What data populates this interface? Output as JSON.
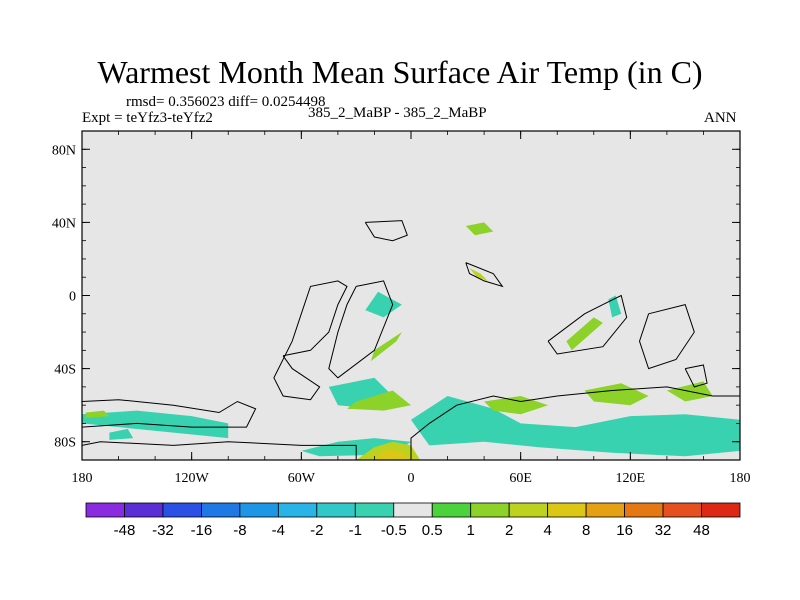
{
  "title": "Warmest Month Mean Surface Air Temp (in C)",
  "stats": "rmsd= 0.356023 diff= 0.0254498",
  "expt": "Expt = teYfz3-teYfz2",
  "case": "385_2_MaBP - 385_2_MaBP",
  "period": "ANN",
  "colors": {
    "land": "#e6e6e6",
    "outline": "#000000"
  },
  "axes": {
    "lat_labels": [
      {
        "text": "80N",
        "lat": 80
      },
      {
        "text": "40N",
        "lat": 40
      },
      {
        "text": "0",
        "lat": 0
      },
      {
        "text": "40S",
        "lat": -40
      },
      {
        "text": "80S",
        "lat": -80
      }
    ],
    "lon_labels": [
      {
        "text": "180",
        "lon": -180
      },
      {
        "text": "120W",
        "lon": -120
      },
      {
        "text": "60W",
        "lon": -60
      },
      {
        "text": "0",
        "lon": 0
      },
      {
        "text": "60E",
        "lon": 60
      },
      {
        "text": "120E",
        "lon": 120
      },
      {
        "text": "180",
        "lon": 180
      }
    ]
  },
  "colorbar": {
    "colors": [
      "#8a2be2",
      "#5b2fd6",
      "#2a50e6",
      "#1e78e6",
      "#1e96e6",
      "#28b4e6",
      "#30c8c8",
      "#38d2b0",
      "#e6e6e6",
      "#4cd23c",
      "#8cd228",
      "#bcd21e",
      "#dcc814",
      "#e6a014",
      "#e67814",
      "#e6501e",
      "#dc2814"
    ],
    "labels": [
      "-48",
      "-32",
      "-16",
      "-8",
      "-4",
      "-2",
      "-1",
      "-0.5",
      "0.5",
      "1",
      "2",
      "4",
      "8",
      "16",
      "32",
      "48"
    ]
  },
  "anomalies": [
    {
      "color": "#38d2b0",
      "pts": [
        [
          -180,
          -65
        ],
        [
          -150,
          -63
        ],
        [
          -120,
          -66
        ],
        [
          -100,
          -70
        ],
        [
          -100,
          -78
        ],
        [
          -130,
          -75
        ],
        [
          -160,
          -72
        ],
        [
          -180,
          -70
        ]
      ]
    },
    {
      "color": "#8cd228",
      "pts": [
        [
          -178,
          -64
        ],
        [
          -168,
          -63
        ],
        [
          -165,
          -66
        ],
        [
          -178,
          -67
        ]
      ]
    },
    {
      "color": "#38d2b0",
      "pts": [
        [
          -45,
          -50
        ],
        [
          -20,
          -45
        ],
        [
          -10,
          -55
        ],
        [
          -20,
          -62
        ],
        [
          -40,
          -60
        ]
      ]
    },
    {
      "color": "#8cd228",
      "pts": [
        [
          -30,
          -58
        ],
        [
          -10,
          -52
        ],
        [
          0,
          -60
        ],
        [
          -15,
          -63
        ],
        [
          -35,
          -62
        ]
      ]
    },
    {
      "color": "#38d2b0",
      "pts": [
        [
          -60,
          -85
        ],
        [
          -40,
          -80
        ],
        [
          -20,
          -78
        ],
        [
          0,
          -80
        ],
        [
          -10,
          -87
        ],
        [
          -50,
          -88
        ]
      ]
    },
    {
      "color": "#bcd21e",
      "pts": [
        [
          -30,
          -90
        ],
        [
          -20,
          -83
        ],
        [
          -10,
          -80
        ],
        [
          0,
          -82
        ],
        [
          5,
          -90
        ]
      ]
    },
    {
      "color": "#dcc814",
      "pts": [
        [
          -22,
          -90
        ],
        [
          -12,
          -84
        ],
        [
          -5,
          -86
        ],
        [
          0,
          -90
        ]
      ]
    },
    {
      "color": "#38d2b0",
      "pts": [
        [
          0,
          -68
        ],
        [
          20,
          -55
        ],
        [
          45,
          -62
        ],
        [
          60,
          -70
        ],
        [
          90,
          -72
        ],
        [
          120,
          -66
        ],
        [
          150,
          -65
        ],
        [
          180,
          -68
        ],
        [
          180,
          -85
        ],
        [
          150,
          -88
        ],
        [
          110,
          -86
        ],
        [
          70,
          -83
        ],
        [
          40,
          -80
        ],
        [
          10,
          -82
        ],
        [
          5,
          -75
        ]
      ]
    },
    {
      "color": "#8cd228",
      "pts": [
        [
          95,
          -52
        ],
        [
          115,
          -48
        ],
        [
          130,
          -55
        ],
        [
          120,
          -60
        ],
        [
          100,
          -58
        ]
      ]
    },
    {
      "color": "#8cd228",
      "pts": [
        [
          140,
          -52
        ],
        [
          160,
          -47
        ],
        [
          165,
          -55
        ],
        [
          150,
          -58
        ]
      ]
    },
    {
      "color": "#8cd228",
      "pts": [
        [
          40,
          -58
        ],
        [
          60,
          -55
        ],
        [
          75,
          -60
        ],
        [
          60,
          -65
        ],
        [
          45,
          -63
        ]
      ]
    },
    {
      "color": "#38d2b0",
      "pts": [
        [
          -18,
          2
        ],
        [
          -5,
          -5
        ],
        [
          -15,
          -12
        ],
        [
          -25,
          -8
        ]
      ]
    },
    {
      "color": "#8cd228",
      "pts": [
        [
          -20,
          -30
        ],
        [
          -5,
          -20
        ],
        [
          -8,
          -25
        ],
        [
          -22,
          -36
        ]
      ]
    },
    {
      "color": "#8cd228",
      "pts": [
        [
          85,
          -25
        ],
        [
          100,
          -12
        ],
        [
          105,
          -15
        ],
        [
          88,
          -30
        ]
      ]
    },
    {
      "color": "#38d2b0",
      "pts": [
        [
          108,
          -2
        ],
        [
          112,
          0
        ],
        [
          115,
          -10
        ],
        [
          110,
          -12
        ]
      ]
    },
    {
      "color": "#8cd228",
      "pts": [
        [
          30,
          38
        ],
        [
          40,
          40
        ],
        [
          45,
          35
        ],
        [
          35,
          33
        ]
      ]
    },
    {
      "color": "#bcd21e",
      "pts": [
        [
          32,
          15
        ],
        [
          38,
          12
        ],
        [
          42,
          8
        ],
        [
          36,
          10
        ]
      ]
    },
    {
      "color": "#38d2b0",
      "pts": [
        [
          -165,
          -75
        ],
        [
          -155,
          -73
        ],
        [
          -152,
          -78
        ],
        [
          -165,
          -79
        ]
      ]
    }
  ],
  "outlines": [
    [
      [
        -30,
        -90
      ],
      [
        -30,
        -82
      ],
      [
        -60,
        -82
      ],
      [
        -100,
        -80
      ],
      [
        -130,
        -82
      ],
      [
        -170,
        -80
      ],
      [
        -180,
        -82
      ]
    ],
    [
      [
        0,
        -90
      ],
      [
        0,
        -78
      ],
      [
        10,
        -70
      ],
      [
        25,
        -60
      ],
      [
        45,
        -55
      ],
      [
        60,
        -58
      ],
      [
        80,
        -55
      ],
      [
        110,
        -52
      ],
      [
        140,
        -50
      ],
      [
        165,
        -55
      ],
      [
        180,
        -55
      ]
    ],
    [
      [
        -70,
        -33
      ],
      [
        -55,
        -30
      ],
      [
        -45,
        -20
      ],
      [
        -40,
        -5
      ],
      [
        -35,
        5
      ],
      [
        -40,
        8
      ],
      [
        -55,
        5
      ],
      [
        -60,
        -10
      ],
      [
        -65,
        -25
      ],
      [
        -75,
        -45
      ],
      [
        -70,
        -55
      ],
      [
        -55,
        -57
      ],
      [
        -50,
        -50
      ],
      [
        -65,
        -40
      ],
      [
        -70,
        -33
      ]
    ],
    [
      [
        -30,
        5
      ],
      [
        -15,
        8
      ],
      [
        -10,
        -5
      ],
      [
        -20,
        -30
      ],
      [
        -40,
        -45
      ],
      [
        -45,
        -40
      ],
      [
        -40,
        -20
      ],
      [
        -35,
        -5
      ],
      [
        -30,
        5
      ]
    ],
    [
      [
        -180,
        -58
      ],
      [
        -160,
        -57
      ],
      [
        -130,
        -60
      ],
      [
        -105,
        -64
      ],
      [
        -95,
        -58
      ],
      [
        -85,
        -62
      ],
      [
        -90,
        -72
      ],
      [
        -120,
        -72
      ],
      [
        -150,
        -70
      ],
      [
        -180,
        -72
      ]
    ],
    [
      [
        -25,
        40
      ],
      [
        -5,
        41
      ],
      [
        -2,
        33
      ],
      [
        -10,
        30
      ],
      [
        -20,
        32
      ],
      [
        -25,
        40
      ]
    ],
    [
      [
        30,
        18
      ],
      [
        45,
        12
      ],
      [
        50,
        5
      ],
      [
        40,
        8
      ],
      [
        32,
        12
      ],
      [
        30,
        18
      ]
    ],
    [
      [
        75,
        -25
      ],
      [
        95,
        -10
      ],
      [
        105,
        -5
      ],
      [
        115,
        0
      ],
      [
        118,
        -12
      ],
      [
        105,
        -28
      ],
      [
        80,
        -32
      ],
      [
        75,
        -25
      ]
    ],
    [
      [
        130,
        -10
      ],
      [
        150,
        -5
      ],
      [
        155,
        -20
      ],
      [
        145,
        -35
      ],
      [
        130,
        -40
      ],
      [
        125,
        -25
      ],
      [
        130,
        -10
      ]
    ],
    [
      [
        150,
        -40
      ],
      [
        160,
        -38
      ],
      [
        162,
        -48
      ],
      [
        155,
        -50
      ],
      [
        150,
        -40
      ]
    ]
  ]
}
